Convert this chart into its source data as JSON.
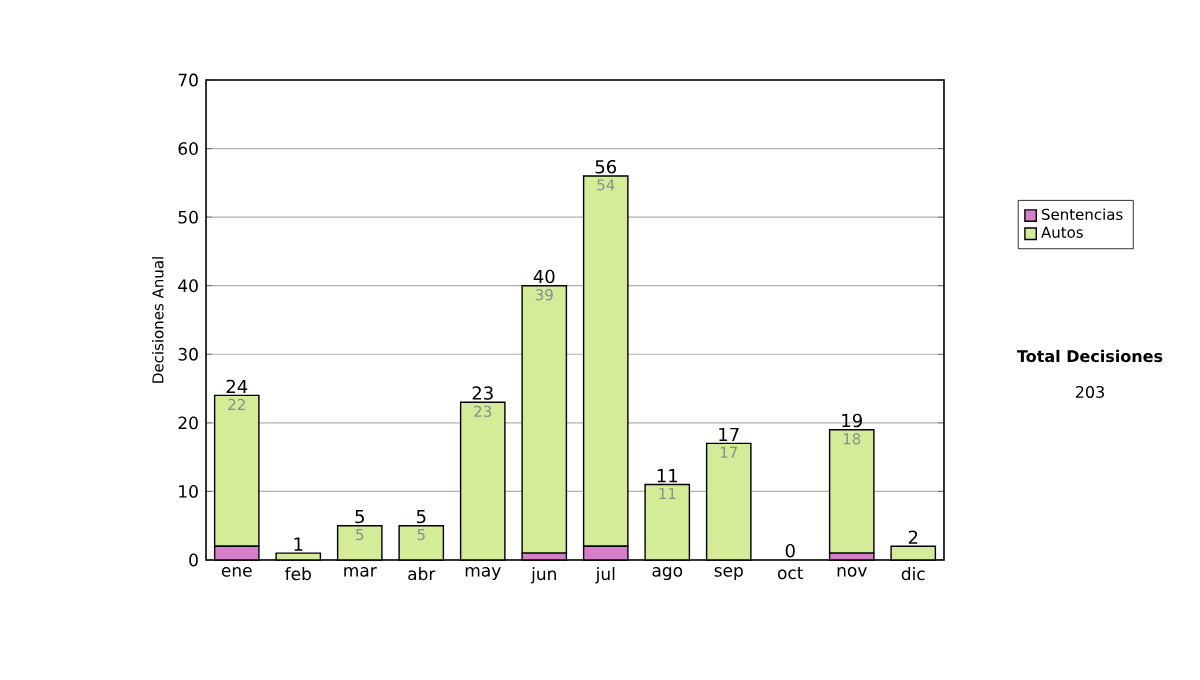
{
  "chart_data": {
    "type": "bar",
    "stacked": true,
    "ylabel": "Decisiones Anual",
    "categories": [
      "ene",
      "feb",
      "mar",
      "abr",
      "may",
      "jun",
      "jul",
      "ago",
      "sep",
      "oct",
      "nov",
      "dic"
    ],
    "series": [
      {
        "name": "Sentencias",
        "color": "#d77ec8",
        "values": [
          2,
          0,
          0,
          0,
          0,
          1,
          2,
          0,
          0,
          0,
          1,
          0
        ]
      },
      {
        "name": "Autos",
        "color": "#d4ec98",
        "values": [
          22,
          1,
          5,
          5,
          23,
          39,
          54,
          11,
          17,
          0,
          18,
          2
        ],
        "value_labels": [
          "22",
          null,
          "5",
          "5",
          "23",
          "39",
          "54",
          "11",
          "17",
          null,
          "18",
          null
        ]
      }
    ],
    "totals": [
      "24",
      "1",
      "5",
      "5",
      "23",
      "40",
      "56",
      "11",
      "17",
      "0",
      "19",
      "2"
    ],
    "ylim": [
      0,
      70
    ],
    "yticks": [
      0,
      10,
      20,
      30,
      40,
      50,
      60,
      70
    ],
    "grid": "y",
    "legend": "right",
    "annotations": [
      "Total Decisiones",
      "203"
    ]
  }
}
